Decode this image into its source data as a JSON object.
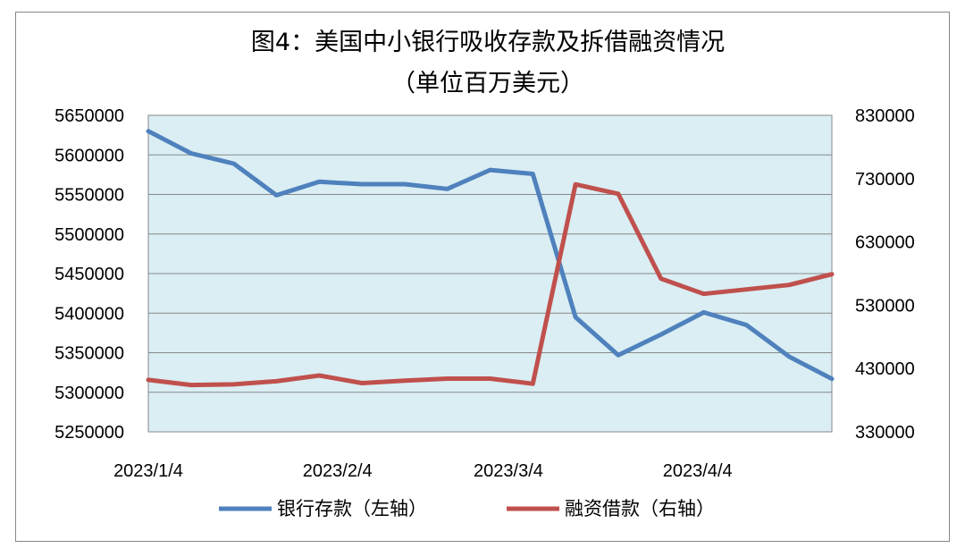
{
  "chart_data": {
    "type": "line",
    "title": "图4：美国中小银行吸收存款及拆借融资情况",
    "subtitle": "（单位百万美元）",
    "x_labels": [
      "2023/1/4",
      "2023/2/4",
      "2023/3/4",
      "2023/4/4"
    ],
    "y_left": {
      "ylim": [
        5250000,
        5650000
      ],
      "ticks": [
        5250000,
        5300000,
        5350000,
        5400000,
        5450000,
        5500000,
        5550000,
        5600000,
        5650000
      ]
    },
    "y_right": {
      "ylim": [
        330000,
        830000
      ],
      "ticks": [
        330000,
        430000,
        530000,
        630000,
        730000,
        830000
      ]
    },
    "x": [
      "2023-01-04",
      "2023-01-11",
      "2023-01-18",
      "2023-01-25",
      "2023-02-01",
      "2023-02-08",
      "2023-02-15",
      "2023-02-22",
      "2023-03-01",
      "2023-03-08",
      "2023-03-15",
      "2023-03-22",
      "2023-03-29",
      "2023-04-05",
      "2023-04-12",
      "2023-04-19",
      "2023-04-26"
    ],
    "series": [
      {
        "name": "银行存款（左轴）",
        "axis": "left",
        "color": "#4F81BD",
        "values": [
          5630000,
          5602000,
          5589000,
          5549000,
          5566000,
          5563000,
          5563000,
          5557000,
          5581000,
          5576000,
          5395000,
          5347000,
          5373000,
          5401000,
          5385000,
          5345000,
          5317000
        ]
      },
      {
        "name": "融资借款（右轴）",
        "axis": "right",
        "color": "#C0504D",
        "values": [
          412000,
          404000,
          405000,
          410000,
          419000,
          407000,
          411000,
          414000,
          414000,
          406000,
          721000,
          706000,
          572000,
          548000,
          555000,
          562000,
          579000
        ]
      }
    ],
    "grid": true,
    "legend_position": "bottom",
    "plot_background": "#DAEEF3"
  }
}
